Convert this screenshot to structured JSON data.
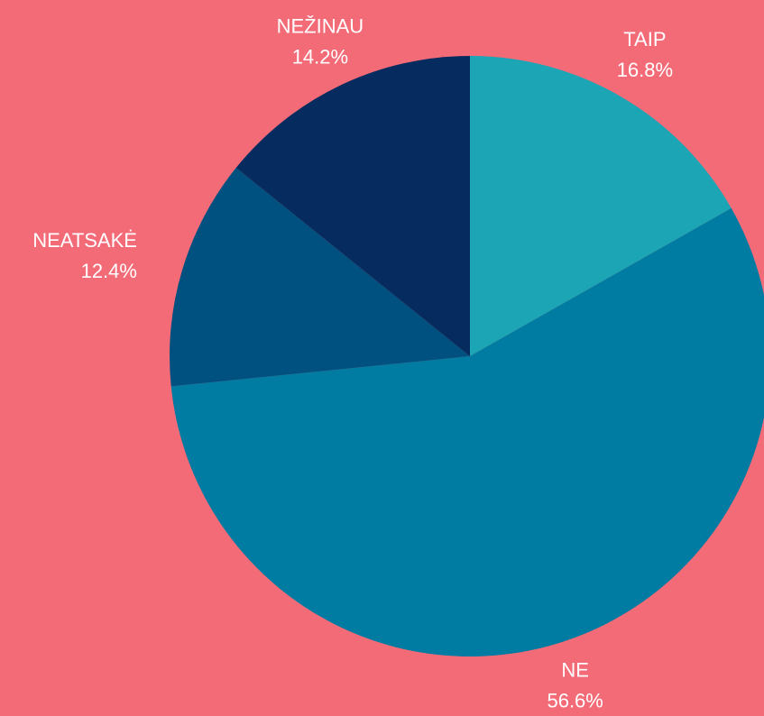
{
  "chart_data": {
    "type": "pie",
    "categories": [
      "TAIP",
      "NE",
      "NEATSAKĖ",
      "NEŽINAU"
    ],
    "values": [
      16.8,
      56.6,
      12.4,
      14.2
    ],
    "value_labels": [
      "16.8%",
      "56.6%",
      "12.4%",
      "14.2%"
    ],
    "colors": [
      "#1ba5b5",
      "#007ba1",
      "#00517f",
      "#062b5e"
    ]
  }
}
